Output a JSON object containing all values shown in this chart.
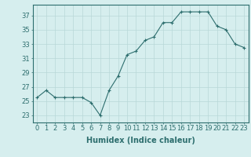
{
  "x": [
    0,
    1,
    2,
    3,
    4,
    5,
    6,
    7,
    8,
    9,
    10,
    11,
    12,
    13,
    14,
    15,
    16,
    17,
    18,
    19,
    20,
    21,
    22,
    23
  ],
  "y": [
    25.5,
    26.5,
    25.5,
    25.5,
    25.5,
    25.5,
    24.8,
    23.0,
    26.5,
    28.5,
    31.5,
    32.0,
    33.5,
    34.0,
    36.0,
    36.0,
    37.5,
    37.5,
    37.5,
    37.5,
    35.5,
    35.0,
    33.0,
    32.5
  ],
  "line_color": "#2d6e6e",
  "marker": "+",
  "marker_color": "#2d6e6e",
  "bg_color": "#d6eeee",
  "grid_color": "#b8d8d8",
  "axis_color": "#2d6e6e",
  "xlabel": "Humidex (Indice chaleur)",
  "ylim": [
    22,
    38.5
  ],
  "xlim": [
    -0.5,
    23.5
  ],
  "yticks": [
    23,
    25,
    27,
    29,
    31,
    33,
    35,
    37
  ],
  "xticks": [
    0,
    1,
    2,
    3,
    4,
    5,
    6,
    7,
    8,
    9,
    10,
    11,
    12,
    13,
    14,
    15,
    16,
    17,
    18,
    19,
    20,
    21,
    22,
    23
  ],
  "font_size": 6,
  "xlabel_fontsize": 7
}
